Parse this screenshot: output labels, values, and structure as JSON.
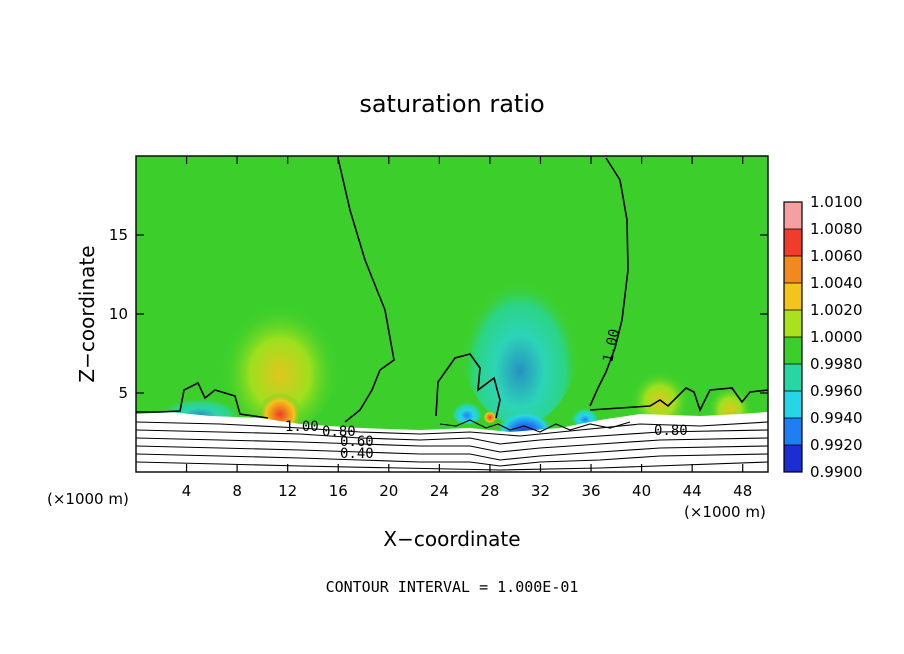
{
  "chart_data": {
    "type": "heatmap",
    "title": "saturation ratio",
    "xlabel": "X−coordinate",
    "ylabel": "Z−coordinate",
    "x_unit": "(×1000 m)",
    "xlim": [
      0,
      50
    ],
    "ylim": [
      0,
      20
    ],
    "x_ticks": [
      4,
      8,
      12,
      16,
      20,
      24,
      28,
      32,
      36,
      40,
      44,
      48
    ],
    "y_ticks": [
      5,
      10,
      15
    ],
    "colorbar": {
      "levels": [
        "1.0100",
        "1.0080",
        "1.0060",
        "1.0040",
        "1.0020",
        "1.0000",
        "0.9980",
        "0.9960",
        "0.9940",
        "0.9920",
        "0.9900"
      ],
      "colors": [
        "#f4a0a0",
        "#f03c2d",
        "#f08a1e",
        "#f3c51c",
        "#a9e21c",
        "#3ccf2c",
        "#27d6a2",
        "#27d5e6",
        "#1f7ef2",
        "#1a2ed4",
        "#6a1fbf"
      ]
    },
    "contour_labels": [
      "1.00",
      "1.00",
      "0.80",
      "0.60",
      "0.40",
      "0.80"
    ],
    "note": "CONTOUR INTERVAL = 1.000E-01"
  }
}
